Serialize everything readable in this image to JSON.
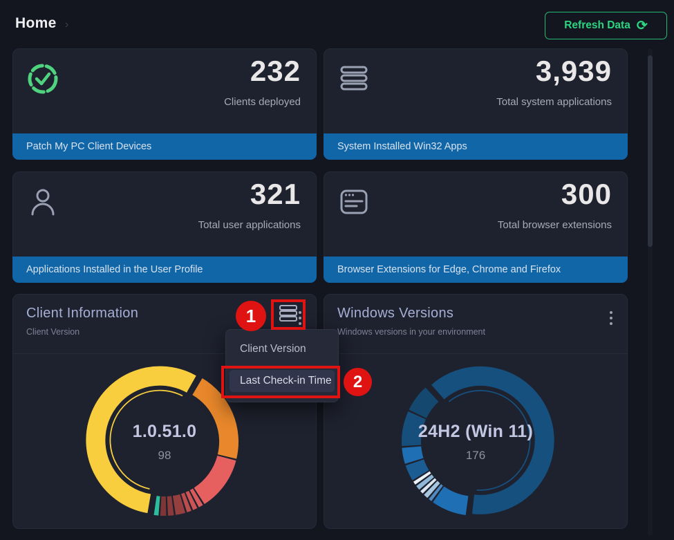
{
  "header": {
    "title": "Home",
    "chevron": "›",
    "refresh": {
      "label": "Refresh Data",
      "glyph": "⟳"
    }
  },
  "colors": {
    "page_bg": "#14161F",
    "card_bg": "#1E212E",
    "footer_blue": "#1166A8",
    "accent_green": "#2BD581",
    "annotation_red": "#E01313",
    "title_lavender": "#A6AFD4"
  },
  "icons": {
    "stat1": "shield-check-icon",
    "stat2": "stack-icon",
    "stat3": "user-icon",
    "stat4": "browser-window-icon",
    "refresh": "refresh-icon",
    "chart_toolbar": "list-bars-icon",
    "card_menu": "kebab-menu-icon"
  },
  "stats": {
    "cards": [
      {
        "value": "232",
        "label": "Clients deployed",
        "footer": "Patch My PC Client Devices"
      },
      {
        "value": "3,939",
        "label": "Total system applications",
        "footer": "System Installed Win32 Apps"
      },
      {
        "value": "321",
        "label": "Total user applications",
        "footer": "Applications Installed in the User Profile"
      },
      {
        "value": "300",
        "label": "Total browser extensions",
        "footer": "Browser Extensions for Edge, Chrome and Firefox"
      }
    ]
  },
  "menu": {
    "items": [
      {
        "label": "Client Version",
        "highlighted": false
      },
      {
        "label": "Last Check-in Time",
        "highlighted": true
      }
    ]
  },
  "annotations": {
    "steps": [
      "1",
      "2"
    ]
  },
  "chart_data": [
    {
      "type": "donut",
      "title": "Client Information",
      "subtitle": "Client Version",
      "center_label": "1.0.51.0",
      "center_value": "98",
      "legend": "none",
      "segments": [
        {
          "label": "1.0.51.0",
          "value": 98,
          "color": "#F8CE3F",
          "start": 189,
          "end": 390,
          "exploded": true
        },
        {
          "label": "",
          "value": 36,
          "color": "#E8872B",
          "start": 30,
          "end": 104
        },
        {
          "label": "",
          "value": 21,
          "color": "#E66060",
          "start": 104,
          "end": 148
        },
        {
          "label": "",
          "value": 3,
          "color": "#D85A5A",
          "start": 148,
          "end": 153
        },
        {
          "label": "",
          "value": 2,
          "color": "#CC5454",
          "start": 153,
          "end": 158
        },
        {
          "label": "",
          "value": 2,
          "color": "#BC4D4D",
          "start": 158,
          "end": 163
        },
        {
          "label": "",
          "value": 4,
          "color": "#963F3F",
          "start": 163,
          "end": 172
        },
        {
          "label": "",
          "value": 3,
          "color": "#8A3A3A",
          "start": 172,
          "end": 178
        },
        {
          "label": "",
          "value": 3,
          "color": "#7E3535",
          "start": 178,
          "end": 184
        },
        {
          "label": "",
          "value": 2,
          "color": "#2BBF9D",
          "start": 184,
          "end": 189
        }
      ]
    },
    {
      "type": "donut",
      "title": "Windows Versions",
      "subtitle": "Windows versions in your environment",
      "center_label": "24H2 (Win 11)",
      "center_value": "176",
      "legend": "none",
      "segments": [
        {
          "label": "24H2 (Win 11)",
          "value": 176,
          "color": "#16507E",
          "start": 318,
          "end": 547,
          "exploded": true
        },
        {
          "label": "",
          "value": 22,
          "color": "#1E6FB4",
          "start": 187,
          "end": 216
        },
        {
          "label": "",
          "value": 3,
          "color": "#4F89BE",
          "start": 216,
          "end": 220
        },
        {
          "label": "",
          "value": 3,
          "color": "#A7C6E0",
          "start": 220,
          "end": 225
        },
        {
          "label": "",
          "value": 3,
          "color": "#D9E6F2",
          "start": 225,
          "end": 229
        },
        {
          "label": "",
          "value": 3,
          "color": "#8FB8D8",
          "start": 229,
          "end": 234
        },
        {
          "label": "",
          "value": 3,
          "color": "#EDF2F8",
          "start": 234,
          "end": 238
        },
        {
          "label": "",
          "value": 9,
          "color": "#1B5C92",
          "start": 238,
          "end": 252
        },
        {
          "label": "",
          "value": 11,
          "color": "#1E6FB4",
          "start": 252,
          "end": 266
        },
        {
          "label": "",
          "value": 22,
          "color": "#174F7C",
          "start": 266,
          "end": 295
        },
        {
          "label": "",
          "value": 18,
          "color": "#14486F",
          "start": 295,
          "end": 318
        }
      ]
    }
  ]
}
